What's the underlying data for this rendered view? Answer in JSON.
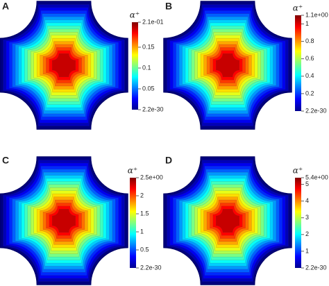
{
  "chart_data": [
    {
      "type": "contour",
      "panel_label": "A",
      "colorbar_title": "α⁺",
      "clim": [
        2.2e-30,
        0.21
      ],
      "cticks": [
        {
          "value": 2.2e-30,
          "label": "2.2e-30"
        },
        0.05,
        0.1,
        0.15,
        {
          "value": 0.21,
          "label": "2.1e-01"
        }
      ]
    },
    {
      "type": "contour",
      "panel_label": "B",
      "colorbar_title": "α⁺",
      "clim": [
        2.2e-30,
        1.1
      ],
      "cticks": [
        {
          "value": 2.2e-30,
          "label": "2.2e-30"
        },
        0.2,
        0.4,
        0.6,
        0.8,
        1,
        {
          "value": 1.1,
          "label": "1.1e+00"
        }
      ]
    },
    {
      "type": "contour",
      "panel_label": "C",
      "colorbar_title": "α⁺",
      "clim": [
        2.2e-30,
        2.5
      ],
      "cticks": [
        {
          "value": 2.2e-30,
          "label": "2.2e-30"
        },
        0.5,
        1,
        1.5,
        2,
        {
          "value": 2.5,
          "label": "2.5e+00"
        }
      ]
    },
    {
      "type": "contour",
      "panel_label": "D",
      "colorbar_title": "α⁺",
      "clim": [
        2.2e-30,
        5.4
      ],
      "cticks": [
        {
          "value": 2.2e-30,
          "label": "2.2e-30"
        },
        1,
        2,
        3,
        4,
        5,
        {
          "value": 5.4,
          "label": "5.4e+00"
        }
      ]
    }
  ]
}
